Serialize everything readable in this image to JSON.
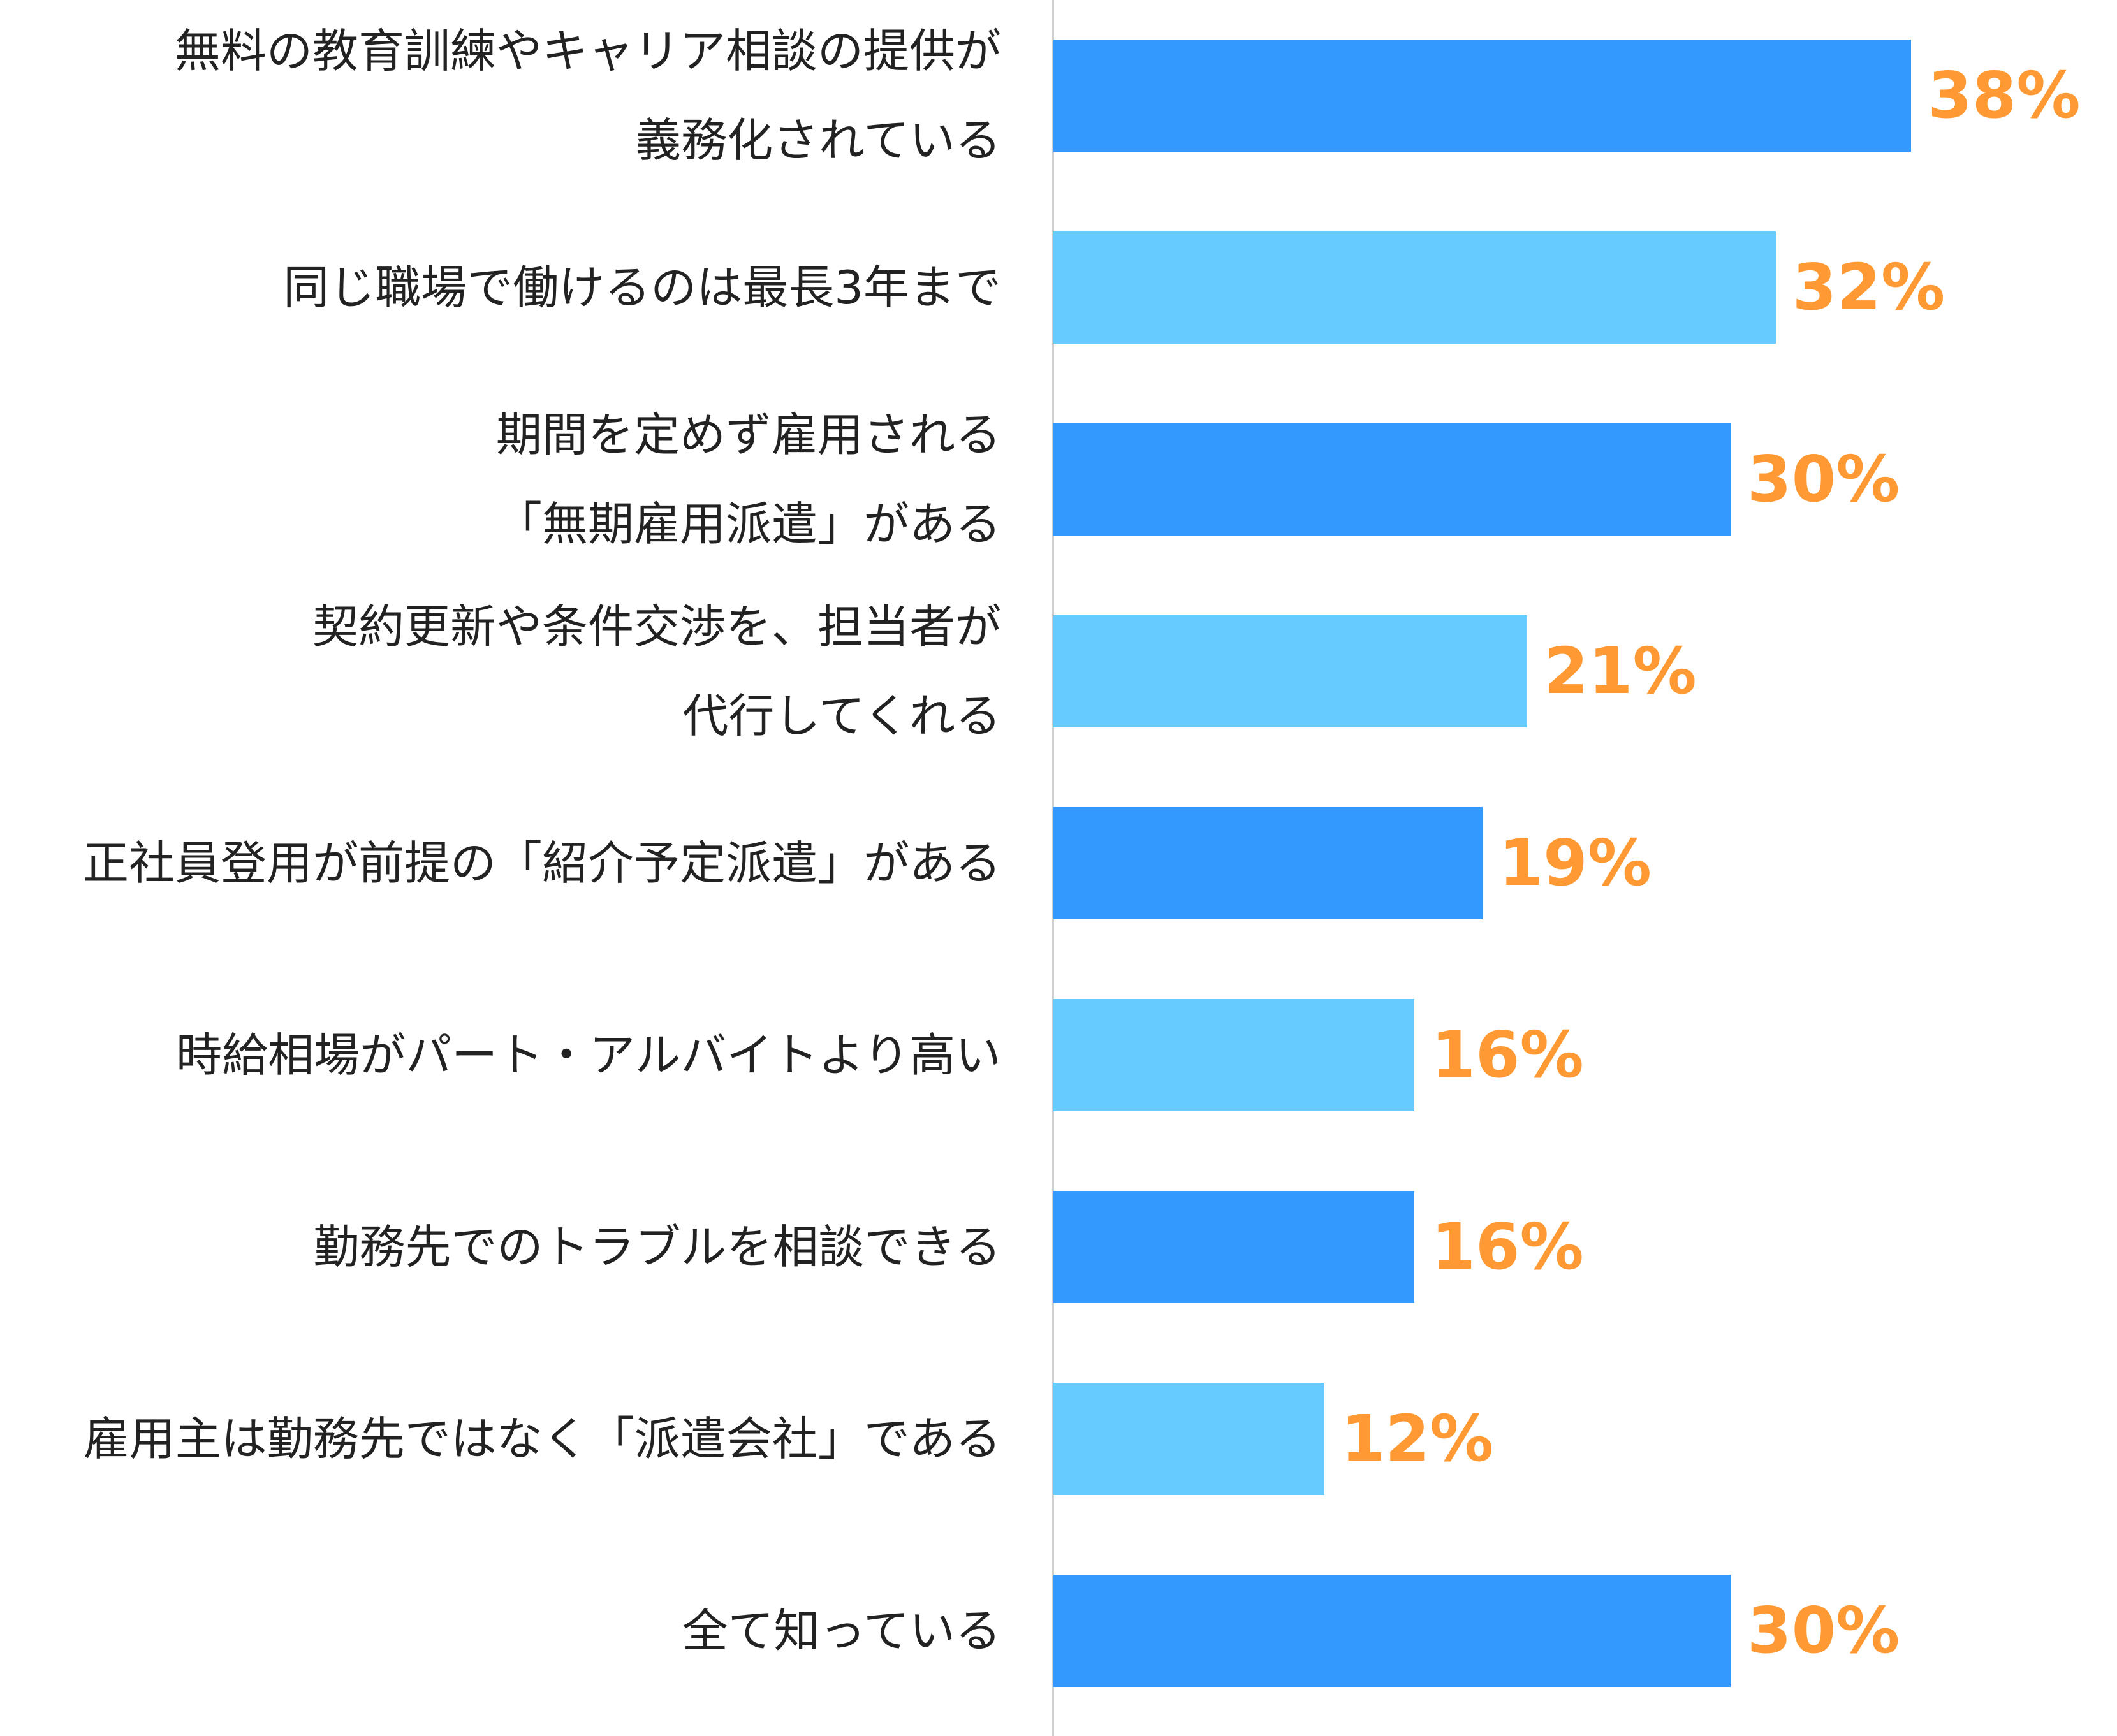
{
  "chart_data": {
    "type": "bar",
    "orientation": "horizontal",
    "categories": [
      [
        "無料の教育訓練やキャリア相談の提供が",
        "義務化されている"
      ],
      [
        "同じ職場で働けるのは最長3年まで"
      ],
      [
        "期間を定めず雇用される",
        "「無期雇用派遣」がある"
      ],
      [
        "契約更新や条件交渉を、担当者が",
        "代行してくれる"
      ],
      [
        "正社員登用が前提の「紹介予定派遣」がある"
      ],
      [
        "時給相場がパート・アルバイトより高い"
      ],
      [
        "勤務先でのトラブルを相談できる"
      ],
      [
        "雇用主は勤務先ではなく「派遣会社」である"
      ],
      [
        "全て知っている"
      ]
    ],
    "values": [
      38,
      32,
      30,
      21,
      19,
      16,
      16,
      12,
      30
    ],
    "value_labels": [
      "38%",
      "32%",
      "30%",
      "21%",
      "19%",
      "16%",
      "16%",
      "12%",
      "30%"
    ],
    "xlim": [
      0,
      45
    ],
    "grid": false,
    "legend": "none",
    "colors": {
      "bar_dark": "#3399FF",
      "bar_light": "#66CCFF",
      "value_text": "#FF9933",
      "axis": "#D0D0D0",
      "label_text": "#222222"
    }
  }
}
